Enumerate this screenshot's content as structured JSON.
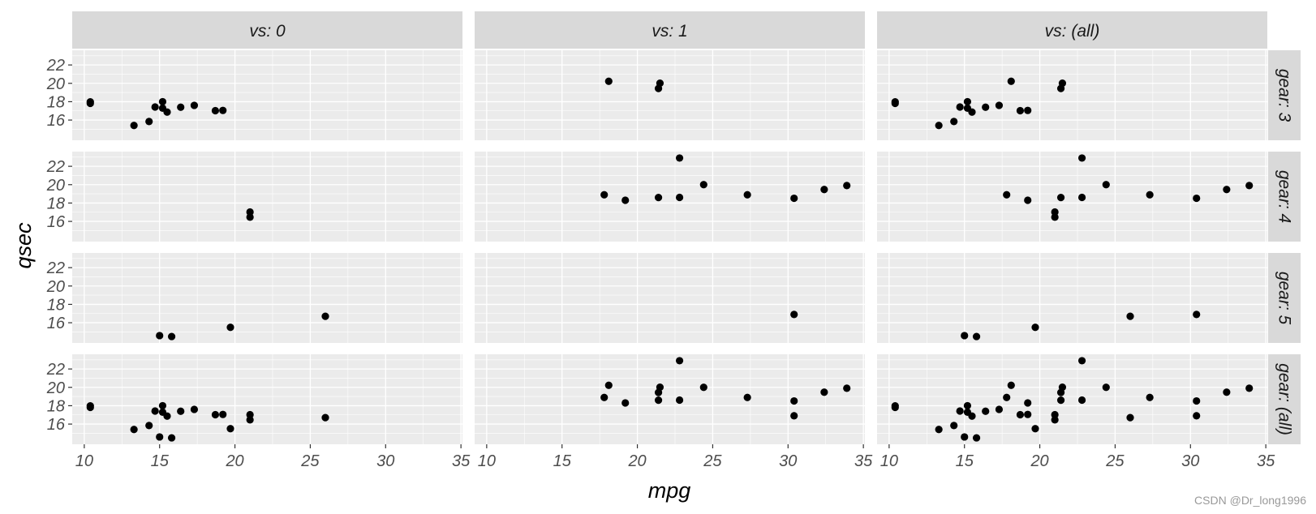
{
  "chart_data": {
    "type": "scatter",
    "facet_grid": true,
    "xlabel": "mpg",
    "ylabel": "qsec",
    "xlim": [
      9.2,
      35.1
    ],
    "ylim": [
      13.8,
      23.6
    ],
    "xticks": [
      10,
      15,
      20,
      25,
      30,
      35
    ],
    "xtick_labels": [
      "10",
      "15",
      "20",
      "25",
      "30",
      "35"
    ],
    "yticks": [
      16,
      18,
      20,
      22
    ],
    "ytick_labels": [
      "16",
      "18",
      "20",
      "22"
    ],
    "grid": true,
    "col_strips": [
      "vs: 0",
      "vs: 1",
      "vs: (all)"
    ],
    "row_strips": [
      "gear: 3",
      "gear: 4",
      "gear: 5",
      "gear: (all)"
    ],
    "panels": [
      [
        {
          "points": [
            [
              10.4,
              17.98
            ],
            [
              10.4,
              17.82
            ],
            [
              13.3,
              15.41
            ],
            [
              14.3,
              15.84
            ],
            [
              14.7,
              17.42
            ],
            [
              15.2,
              18.0
            ],
            [
              15.2,
              17.3
            ],
            [
              15.5,
              16.87
            ],
            [
              16.4,
              17.4
            ],
            [
              17.3,
              17.6
            ],
            [
              18.7,
              17.02
            ],
            [
              19.2,
              17.05
            ]
          ]
        },
        {
          "points": [
            [
              21.0,
              16.46
            ],
            [
              21.0,
              17.02
            ]
          ]
        },
        {
          "points": [
            [
              26.0,
              16.7
            ],
            [
              15.8,
              14.5
            ],
            [
              19.7,
              15.5
            ],
            [
              15.0,
              14.6
            ]
          ]
        },
        {
          "points": [
            [
              10.4,
              17.98
            ],
            [
              10.4,
              17.82
            ],
            [
              13.3,
              15.41
            ],
            [
              14.3,
              15.84
            ],
            [
              14.7,
              17.42
            ],
            [
              15.2,
              18.0
            ],
            [
              15.2,
              17.3
            ],
            [
              15.5,
              16.87
            ],
            [
              16.4,
              17.4
            ],
            [
              17.3,
              17.6
            ],
            [
              18.7,
              17.02
            ],
            [
              19.2,
              17.05
            ],
            [
              21.0,
              16.46
            ],
            [
              21.0,
              17.02
            ],
            [
              26.0,
              16.7
            ],
            [
              15.8,
              14.5
            ],
            [
              19.7,
              15.5
            ],
            [
              15.0,
              14.6
            ]
          ]
        }
      ],
      [
        {
          "points": [
            [
              21.4,
              19.44
            ],
            [
              18.1,
              20.22
            ],
            [
              21.5,
              20.01
            ]
          ]
        },
        {
          "points": [
            [
              22.8,
              18.61
            ],
            [
              24.4,
              20.0
            ],
            [
              22.8,
              22.9
            ],
            [
              19.2,
              18.3
            ],
            [
              17.8,
              18.9
            ],
            [
              32.4,
              19.47
            ],
            [
              30.4,
              18.52
            ],
            [
              33.9,
              19.9
            ],
            [
              27.3,
              18.9
            ],
            [
              21.4,
              18.6
            ]
          ]
        },
        {
          "points": [
            [
              30.4,
              16.9
            ]
          ]
        },
        {
          "points": [
            [
              21.4,
              19.44
            ],
            [
              18.1,
              20.22
            ],
            [
              21.5,
              20.01
            ],
            [
              22.8,
              18.61
            ],
            [
              24.4,
              20.0
            ],
            [
              22.8,
              22.9
            ],
            [
              19.2,
              18.3
            ],
            [
              17.8,
              18.9
            ],
            [
              32.4,
              19.47
            ],
            [
              30.4,
              18.52
            ],
            [
              33.9,
              19.9
            ],
            [
              27.3,
              18.9
            ],
            [
              21.4,
              18.6
            ],
            [
              30.4,
              16.9
            ]
          ]
        }
      ],
      [
        {
          "points": [
            [
              10.4,
              17.98
            ],
            [
              10.4,
              17.82
            ],
            [
              13.3,
              15.41
            ],
            [
              14.3,
              15.84
            ],
            [
              14.7,
              17.42
            ],
            [
              15.2,
              18.0
            ],
            [
              15.2,
              17.3
            ],
            [
              15.5,
              16.87
            ],
            [
              16.4,
              17.4
            ],
            [
              17.3,
              17.6
            ],
            [
              18.7,
              17.02
            ],
            [
              19.2,
              17.05
            ],
            [
              21.4,
              19.44
            ],
            [
              18.1,
              20.22
            ],
            [
              21.5,
              20.01
            ]
          ]
        },
        {
          "points": [
            [
              21.0,
              16.46
            ],
            [
              21.0,
              17.02
            ],
            [
              22.8,
              18.61
            ],
            [
              24.4,
              20.0
            ],
            [
              22.8,
              22.9
            ],
            [
              19.2,
              18.3
            ],
            [
              17.8,
              18.9
            ],
            [
              32.4,
              19.47
            ],
            [
              30.4,
              18.52
            ],
            [
              33.9,
              19.9
            ],
            [
              27.3,
              18.9
            ],
            [
              21.4,
              18.6
            ]
          ]
        },
        {
          "points": [
            [
              26.0,
              16.7
            ],
            [
              15.8,
              14.5
            ],
            [
              19.7,
              15.5
            ],
            [
              15.0,
              14.6
            ],
            [
              30.4,
              16.9
            ]
          ]
        },
        {
          "points": [
            [
              10.4,
              17.98
            ],
            [
              10.4,
              17.82
            ],
            [
              13.3,
              15.41
            ],
            [
              14.3,
              15.84
            ],
            [
              14.7,
              17.42
            ],
            [
              15.2,
              18.0
            ],
            [
              15.2,
              17.3
            ],
            [
              15.5,
              16.87
            ],
            [
              16.4,
              17.4
            ],
            [
              17.3,
              17.6
            ],
            [
              18.7,
              17.02
            ],
            [
              19.2,
              17.05
            ],
            [
              21.4,
              19.44
            ],
            [
              18.1,
              20.22
            ],
            [
              21.5,
              20.01
            ],
            [
              21.0,
              16.46
            ],
            [
              21.0,
              17.02
            ],
            [
              22.8,
              18.61
            ],
            [
              24.4,
              20.0
            ],
            [
              22.8,
              22.9
            ],
            [
              19.2,
              18.3
            ],
            [
              17.8,
              18.9
            ],
            [
              32.4,
              19.47
            ],
            [
              30.4,
              18.52
            ],
            [
              33.9,
              19.9
            ],
            [
              27.3,
              18.9
            ],
            [
              21.4,
              18.6
            ],
            [
              26.0,
              16.7
            ],
            [
              15.8,
              14.5
            ],
            [
              19.7,
              15.5
            ],
            [
              15.0,
              14.6
            ],
            [
              30.4,
              16.9
            ]
          ]
        }
      ]
    ]
  },
  "watermark": "CSDN @Dr_long1996",
  "colors": {
    "panel_background": "#ebebeb",
    "grid_major": "#ffffff",
    "strip_background": "#d9d9d9",
    "point": "#000000",
    "tick": "#333333"
  }
}
